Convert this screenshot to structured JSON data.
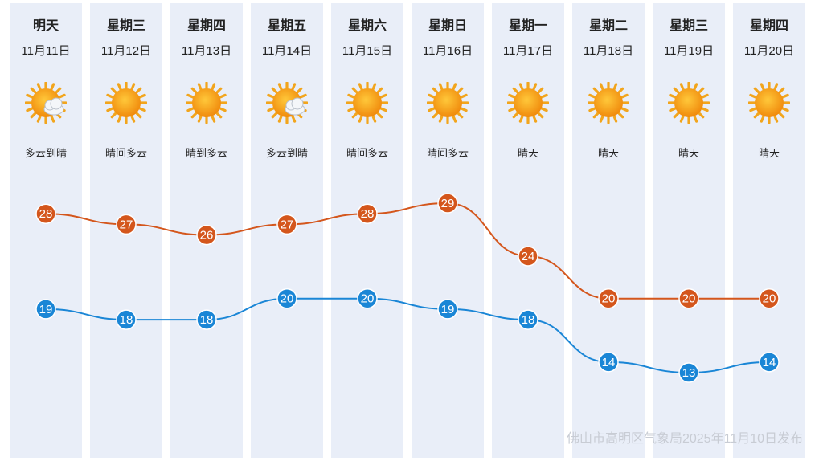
{
  "days": [
    {
      "name": "明天",
      "date": "11月11日",
      "weather": "多云到晴",
      "icon": "sun-cloud-icon",
      "high": 28,
      "low": 19
    },
    {
      "name": "星期三",
      "date": "11月12日",
      "weather": "晴间多云",
      "icon": "sun-icon",
      "high": 27,
      "low": 18
    },
    {
      "name": "星期四",
      "date": "11月13日",
      "weather": "晴到多云",
      "icon": "sun-icon",
      "high": 26,
      "low": 18
    },
    {
      "name": "星期五",
      "date": "11月14日",
      "weather": "多云到晴",
      "icon": "sun-cloud-icon",
      "high": 27,
      "low": 20
    },
    {
      "name": "星期六",
      "date": "11月15日",
      "weather": "晴间多云",
      "icon": "sun-icon",
      "high": 28,
      "low": 20
    },
    {
      "name": "星期日",
      "date": "11月16日",
      "weather": "晴间多云",
      "icon": "sun-icon",
      "high": 29,
      "low": 19
    },
    {
      "name": "星期一",
      "date": "11月17日",
      "weather": "晴天",
      "icon": "sun-icon",
      "high": 24,
      "low": 18
    },
    {
      "name": "星期二",
      "date": "11月18日",
      "weather": "晴天",
      "icon": "sun-icon",
      "high": 20,
      "low": 14
    },
    {
      "name": "星期三",
      "date": "11月19日",
      "weather": "晴天",
      "icon": "sun-icon",
      "high": 20,
      "low": 13
    },
    {
      "name": "星期四",
      "date": "11月20日",
      "weather": "晴天",
      "icon": "sun-icon",
      "high": 20,
      "low": 14
    }
  ],
  "footer": "佛山市高明区气象局2025年11月10日发布",
  "chart_data": {
    "type": "line",
    "categories": [
      "11月11日",
      "11月12日",
      "11月13日",
      "11月14日",
      "11月15日",
      "11月16日",
      "11月17日",
      "11月18日",
      "11月19日",
      "11月20日"
    ],
    "series": [
      {
        "values": [
          28,
          27,
          26,
          27,
          28,
          29,
          24,
          20,
          20,
          20
        ],
        "color": "#d4561c"
      },
      {
        "values": [
          19,
          18,
          18,
          20,
          20,
          19,
          18,
          14,
          13,
          14
        ],
        "color": "#1a86d6"
      }
    ],
    "ylim": [
      13,
      29
    ],
    "grid": false,
    "data_labels": true
  },
  "colors": {
    "column_bg": "#e9eef8",
    "high_line": "#d4561c",
    "low_line": "#1a86d6",
    "footer_text": "#c8ccd4",
    "sun": "#f5a012"
  }
}
